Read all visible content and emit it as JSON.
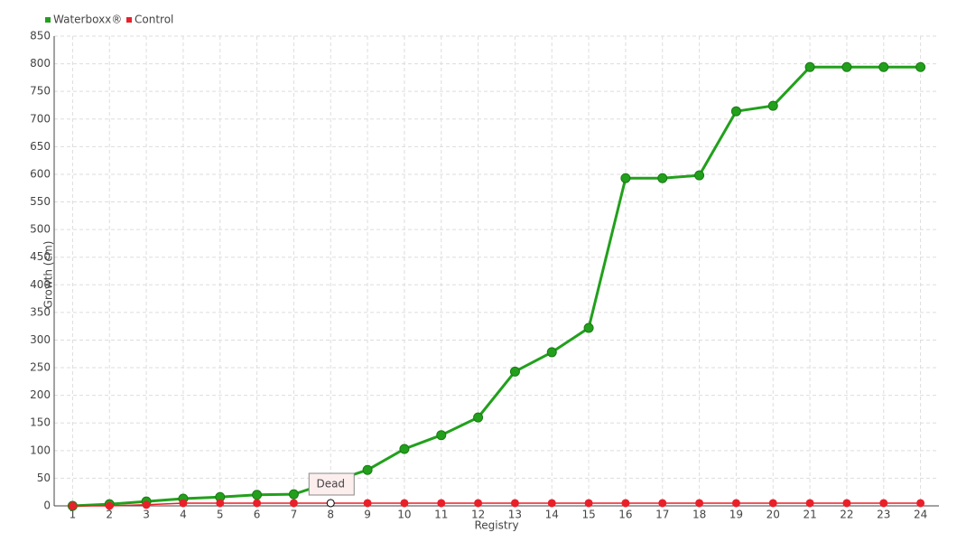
{
  "chart_data": {
    "type": "line",
    "x_label": "Registry",
    "y_label": "Growth (cm)",
    "categories": [
      1,
      2,
      3,
      4,
      5,
      6,
      7,
      8,
      9,
      10,
      11,
      12,
      13,
      14,
      15,
      16,
      17,
      18,
      19,
      20,
      21,
      22,
      23,
      24
    ],
    "series": [
      {
        "name": "Waterboxx®",
        "color": "#22a01c",
        "values": [
          0,
          3,
          8,
          13,
          16,
          20,
          21,
          43,
          65,
          103,
          128,
          160,
          243,
          278,
          322,
          593,
          593,
          598,
          714,
          724,
          794,
          794,
          794,
          794
        ]
      },
      {
        "name": "Control",
        "color": "#e8202a",
        "values": [
          0,
          0,
          2,
          5,
          5,
          5,
          5,
          5,
          5,
          5,
          5,
          5,
          5,
          5,
          5,
          5,
          5,
          5,
          5,
          5,
          5,
          5,
          5,
          5
        ]
      }
    ],
    "ylim": [
      0,
      850
    ],
    "yticks": [
      0,
      50,
      100,
      150,
      200,
      250,
      300,
      350,
      400,
      450,
      500,
      550,
      600,
      650,
      700,
      750,
      800,
      850
    ],
    "grid": true,
    "annotations": [
      {
        "text": "Dead",
        "at": 8
      }
    ]
  }
}
